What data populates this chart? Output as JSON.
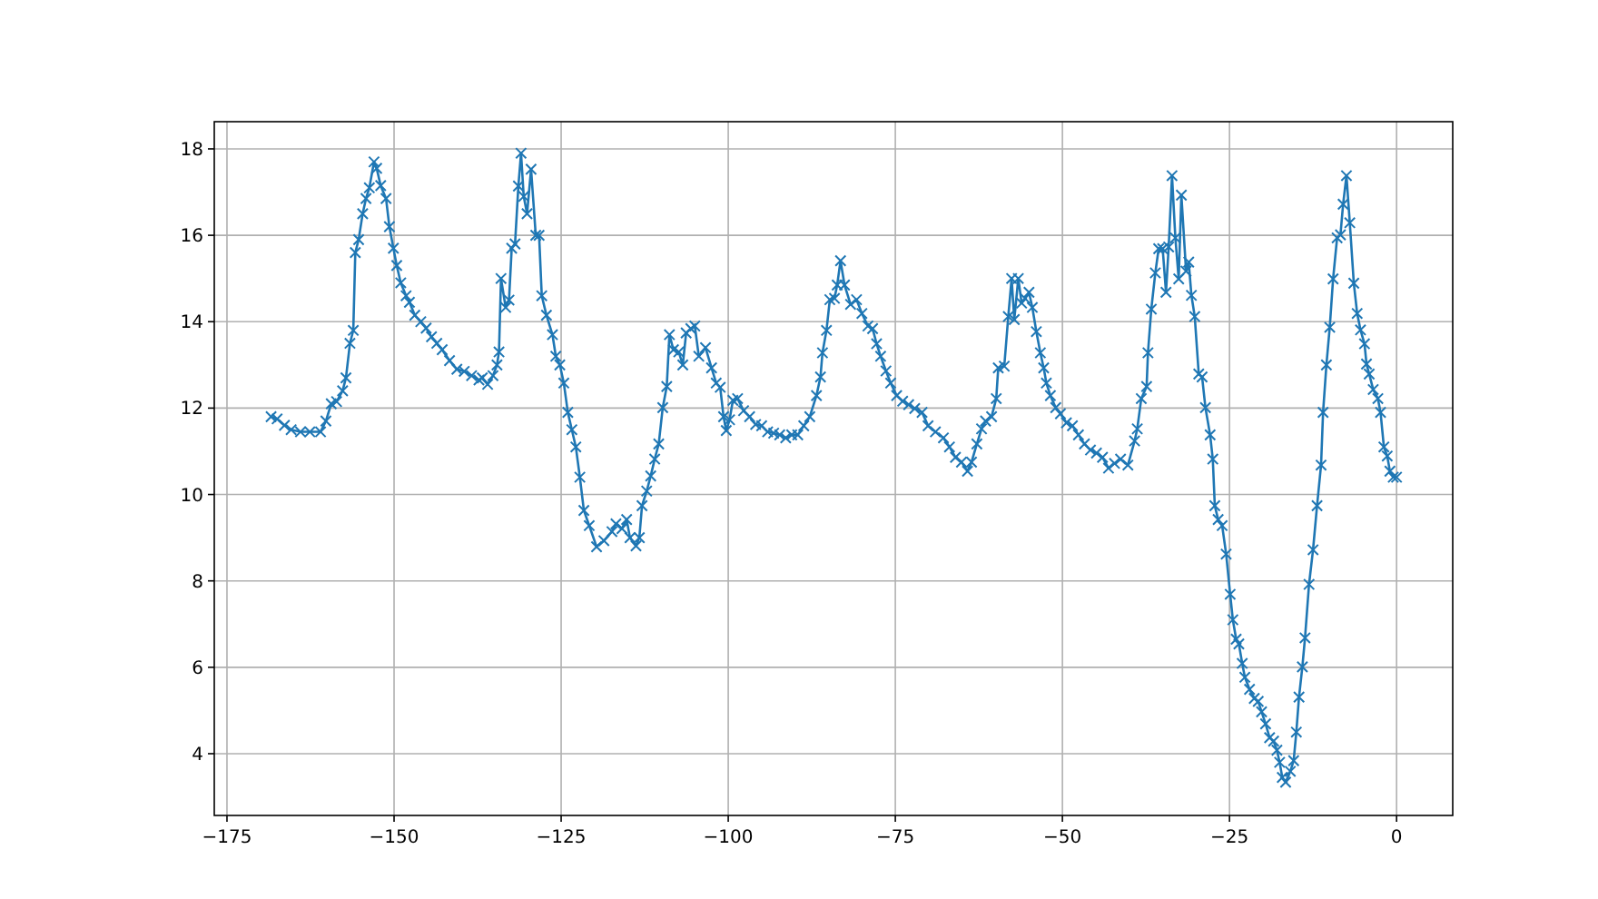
{
  "chart_data": {
    "type": "line",
    "marker": "cross",
    "line_style": "solid",
    "grid": true,
    "xlim": [
      -176.9,
      8.4
    ],
    "ylim": [
      2.57,
      18.63
    ],
    "xticks": [
      {
        "value": -175,
        "label": "−175"
      },
      {
        "value": -150,
        "label": "−150"
      },
      {
        "value": -125,
        "label": "−125"
      },
      {
        "value": -100,
        "label": "−100"
      },
      {
        "value": -75,
        "label": "−75"
      },
      {
        "value": -50,
        "label": "−50"
      },
      {
        "value": -25,
        "label": "−25"
      },
      0
    ],
    "yticks": [
      4,
      6,
      8,
      10,
      12,
      14,
      16,
      18
    ],
    "series": [
      {
        "color": "#1f77b4",
        "x": [
          -168.4,
          -167.5,
          -166.4,
          -165.4,
          -164.0,
          -162.6,
          -161.0,
          -160.2,
          -159.4,
          -158.6,
          -157.7,
          -157.2,
          -156.6,
          -156.1,
          -155.8,
          -155.3,
          -154.7,
          -154.2,
          -153.7,
          -153.0,
          -152.6,
          -152.0,
          -151.2,
          -150.7,
          -150.1,
          -149.6,
          -149.0,
          -148.2,
          -147.7,
          -146.9,
          -146.0,
          -145.2,
          -144.4,
          -143.6,
          -142.8,
          -141.7,
          -140.6,
          -139.5,
          -138.4,
          -137.3,
          -136.8,
          -136.0,
          -135.2,
          -134.6,
          -134.3,
          -134.0,
          -133.3,
          -132.8,
          -132.4,
          -131.9,
          -131.4,
          -131.0,
          -130.6,
          -130.1,
          -129.5,
          -128.8,
          -128.3,
          -127.9,
          -127.2,
          -126.3,
          -125.8,
          -125.2,
          -124.6,
          -124.0,
          -123.4,
          -122.8,
          -122.2,
          -121.6,
          -120.8,
          -119.7,
          -118.6,
          -117.4,
          -116.8,
          -115.9,
          -115.2,
          -114.7,
          -113.8,
          -113.3,
          -112.9,
          -112.2,
          -111.6,
          -111.0,
          -110.4,
          -109.8,
          -109.2,
          -108.8,
          -108.2,
          -107.4,
          -106.8,
          -106.3,
          -105.6,
          -105.0,
          -104.4,
          -103.4,
          -102.5,
          -101.8,
          -101.2,
          -100.7,
          -100.3,
          -99.8,
          -99.3,
          -98.6,
          -97.7,
          -96.8,
          -95.9,
          -95.0,
          -94.1,
          -93.2,
          -92.3,
          -91.4,
          -90.5,
          -89.6,
          -88.7,
          -87.8,
          -86.8,
          -86.2,
          -85.9,
          -85.3,
          -84.8,
          -84.1,
          -83.7,
          -83.2,
          -82.6,
          -81.7,
          -80.8,
          -80.0,
          -79.1,
          -78.4,
          -77.8,
          -77.2,
          -76.4,
          -75.7,
          -74.8,
          -73.9,
          -73.0,
          -72.1,
          -71.0,
          -70.1,
          -69.0,
          -67.8,
          -66.9,
          -66.0,
          -65.1,
          -64.2,
          -63.6,
          -62.8,
          -62.1,
          -61.5,
          -60.6,
          -59.9,
          -59.6,
          -58.7,
          -58.1,
          -57.6,
          -57.2,
          -56.6,
          -56.1,
          -55.6,
          -55.0,
          -54.5,
          -53.9,
          -53.3,
          -52.8,
          -52.4,
          -51.8,
          -51.0,
          -50.3,
          -49.4,
          -48.5,
          -47.6,
          -46.7,
          -45.8,
          -44.9,
          -44.0,
          -43.1,
          -42.2,
          -41.3,
          -40.2,
          -39.2,
          -38.8,
          -38.2,
          -37.4,
          -37.2,
          -36.7,
          -36.1,
          -35.6,
          -35.0,
          -34.5,
          -34.1,
          -33.6,
          -33.1,
          -32.6,
          -32.2,
          -31.5,
          -31.1,
          -30.7,
          -30.2,
          -29.6,
          -29.1,
          -28.6,
          -27.9,
          -27.5,
          -27.2,
          -26.7,
          -26.1,
          -25.5,
          -24.9,
          -24.5,
          -24.0,
          -23.6,
          -23.1,
          -22.7,
          -22.0,
          -21.3,
          -20.7,
          -20.2,
          -19.6,
          -19.0,
          -18.4,
          -17.9,
          -17.5,
          -17.1,
          -16.6,
          -15.9,
          -15.4,
          -15.0,
          -14.6,
          -14.1,
          -13.7,
          -13.1,
          -12.5,
          -11.9,
          -11.3,
          -11.0,
          -10.5,
          -10.0,
          -9.5,
          -8.9,
          -8.4,
          -8.0,
          -7.5,
          -7.0,
          -6.4,
          -5.9,
          -5.4,
          -4.8,
          -4.5,
          -4.1,
          -3.5,
          -2.8,
          -2.4,
          -1.9,
          -1.4,
          -1.0,
          -0.5,
          0.0
        ],
        "values": [
          11.8,
          11.75,
          11.6,
          11.5,
          11.45,
          11.45,
          11.45,
          11.7,
          12.1,
          12.15,
          12.4,
          12.7,
          13.5,
          13.8,
          15.6,
          15.9,
          16.5,
          16.85,
          17.1,
          17.7,
          17.55,
          17.15,
          16.85,
          16.2,
          15.7,
          15.3,
          14.9,
          14.6,
          14.45,
          14.15,
          14.0,
          13.85,
          13.65,
          13.5,
          13.35,
          13.1,
          12.9,
          12.85,
          12.75,
          12.65,
          12.7,
          12.55,
          12.75,
          13.0,
          13.3,
          15.0,
          14.33,
          14.5,
          15.7,
          15.8,
          17.14,
          17.9,
          16.9,
          16.5,
          17.53,
          16.0,
          16.0,
          14.6,
          14.15,
          13.7,
          13.2,
          13.0,
          12.58,
          11.9,
          11.5,
          11.1,
          10.4,
          9.63,
          9.28,
          8.79,
          8.93,
          9.14,
          9.32,
          9.21,
          9.42,
          9.0,
          8.81,
          9.0,
          9.74,
          10.08,
          10.43,
          10.82,
          11.17,
          12.01,
          12.5,
          13.7,
          13.35,
          13.3,
          13.0,
          13.74,
          13.84,
          13.9,
          13.2,
          13.4,
          12.93,
          12.58,
          12.48,
          11.8,
          11.48,
          11.73,
          12.18,
          12.22,
          11.94,
          11.8,
          11.62,
          11.59,
          11.45,
          11.42,
          11.38,
          11.31,
          11.38,
          11.38,
          11.59,
          11.8,
          12.29,
          12.72,
          13.28,
          13.8,
          14.51,
          14.54,
          14.85,
          15.41,
          14.85,
          14.4,
          14.51,
          14.19,
          13.9,
          13.84,
          13.49,
          13.2,
          12.86,
          12.58,
          12.29,
          12.16,
          12.08,
          11.99,
          11.9,
          11.59,
          11.45,
          11.31,
          11.1,
          10.86,
          10.75,
          10.54,
          10.75,
          11.17,
          11.52,
          11.7,
          11.8,
          12.22,
          12.93,
          12.97,
          14.12,
          15.0,
          14.05,
          15.0,
          14.43,
          14.54,
          14.68,
          14.33,
          13.77,
          13.28,
          12.93,
          12.58,
          12.29,
          12.01,
          11.87,
          11.66,
          11.59,
          11.38,
          11.17,
          11.03,
          10.96,
          10.86,
          10.61,
          10.72,
          10.82,
          10.68,
          11.24,
          11.52,
          12.22,
          12.5,
          13.28,
          14.29,
          15.13,
          15.69,
          15.69,
          14.68,
          15.73,
          17.38,
          15.94,
          14.99,
          16.93,
          15.17,
          15.38,
          14.61,
          14.12,
          12.79,
          12.72,
          12.01,
          11.38,
          10.82,
          9.74,
          9.42,
          9.28,
          8.62,
          7.69,
          7.1,
          6.65,
          6.54,
          6.09,
          5.77,
          5.49,
          5.28,
          5.21,
          4.97,
          4.69,
          4.37,
          4.29,
          4.08,
          3.8,
          3.45,
          3.34,
          3.59,
          3.84,
          4.5,
          5.31,
          6.01,
          6.68,
          7.92,
          8.72,
          9.74,
          10.68,
          11.9,
          13.0,
          13.87,
          14.99,
          15.94,
          16.01,
          16.72,
          17.38,
          16.29,
          14.89,
          14.19,
          13.81,
          13.49,
          13.02,
          12.79,
          12.43,
          12.22,
          11.9,
          11.1,
          10.89,
          10.54,
          10.4,
          10.4
        ]
      }
    ]
  }
}
